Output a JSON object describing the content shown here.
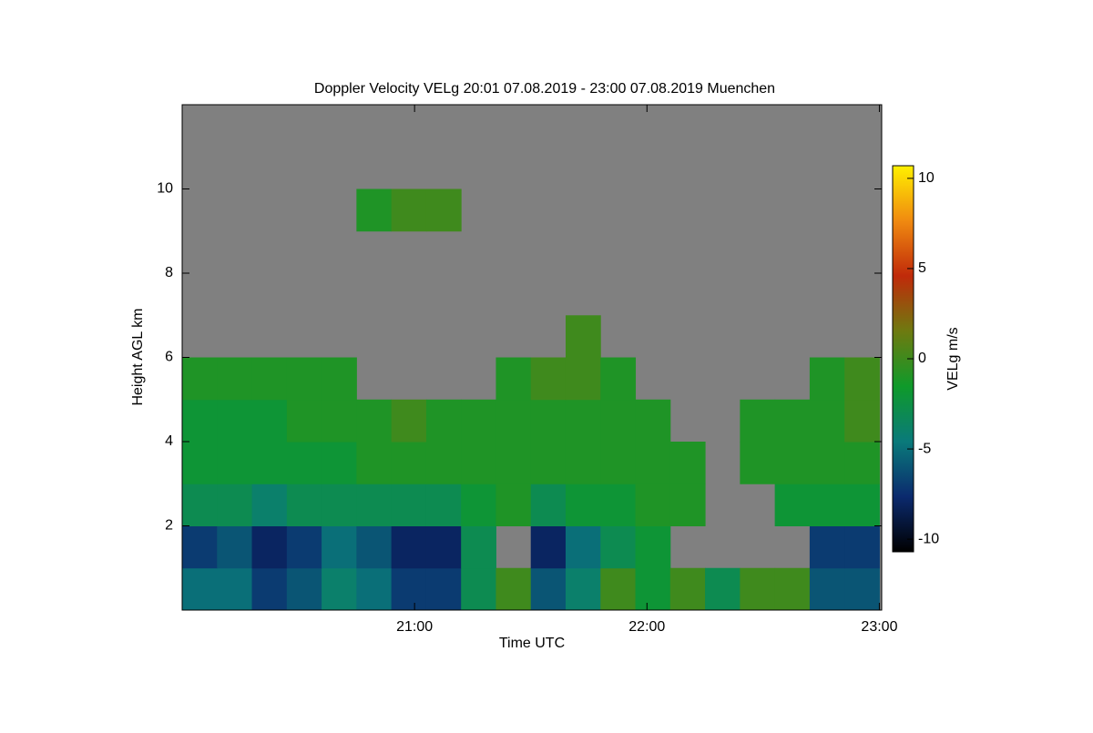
{
  "chart_data": {
    "type": "heatmap",
    "title": "Doppler Velocity VELg   20:01 07.08.2019 - 23:00 07.08.2019 Muenchen",
    "x_label": "Time UTC",
    "y_label": "Height AGL km",
    "colorbar_label": "VELg m/s",
    "x_bins": [
      20.0,
      20.15,
      20.3,
      20.45,
      20.6,
      20.75,
      20.9,
      21.05,
      21.2,
      21.35,
      21.5,
      21.65,
      21.8,
      21.95,
      22.1,
      22.25,
      22.4,
      22.55,
      22.7,
      22.85,
      23.0
    ],
    "y_bins": [
      0,
      1,
      2,
      3,
      4,
      5,
      6,
      7,
      8,
      9,
      10,
      11,
      12
    ],
    "z": [
      [
        -5,
        -5,
        -7,
        -6,
        -4,
        -5,
        -7,
        -7,
        -3,
        0,
        -6,
        -4,
        0,
        -2,
        0,
        -3,
        0,
        0,
        -6,
        -6
      ],
      [
        -7,
        -6,
        -8,
        -7,
        -5,
        -6,
        -8,
        -8,
        -3,
        null,
        -8,
        -5,
        -3,
        -2,
        null,
        null,
        null,
        null,
        -7,
        -7
      ],
      [
        -3,
        -3,
        -4,
        -3,
        -3,
        -3,
        -3,
        -3,
        -2,
        -1,
        -3,
        -2,
        -2,
        -1,
        -1,
        null,
        null,
        -2,
        -2,
        -2
      ],
      [
        -2,
        -2,
        -2,
        -2,
        -2,
        -1,
        -1,
        -1,
        -1,
        -1,
        -1,
        -1,
        -1,
        -1,
        -1,
        null,
        -1,
        -1,
        -1,
        -1
      ],
      [
        -2,
        -2,
        -2,
        -1,
        -1,
        -1,
        0,
        -1,
        -1,
        -1,
        -1,
        -1,
        -1,
        -1,
        null,
        null,
        -1,
        -1,
        -1,
        0
      ],
      [
        -1,
        -1,
        -1,
        -1,
        -1,
        null,
        null,
        null,
        null,
        -1,
        0,
        0,
        -1,
        null,
        null,
        null,
        null,
        null,
        -1,
        0
      ],
      [
        null,
        null,
        null,
        null,
        null,
        null,
        null,
        null,
        null,
        null,
        null,
        0,
        null,
        null,
        null,
        null,
        null,
        null,
        null,
        null
      ],
      [
        null,
        null,
        null,
        null,
        null,
        null,
        null,
        null,
        null,
        null,
        null,
        null,
        null,
        null,
        null,
        null,
        null,
        null,
        null,
        null
      ],
      [
        null,
        null,
        null,
        null,
        null,
        null,
        null,
        null,
        null,
        null,
        null,
        null,
        null,
        null,
        null,
        null,
        null,
        null,
        null,
        null
      ],
      [
        null,
        null,
        null,
        null,
        null,
        -1,
        0,
        0,
        null,
        null,
        null,
        null,
        null,
        null,
        null,
        null,
        null,
        null,
        null,
        null
      ],
      [
        null,
        null,
        null,
        null,
        null,
        null,
        null,
        null,
        null,
        null,
        null,
        null,
        null,
        null,
        null,
        null,
        null,
        null,
        null,
        null
      ],
      [
        null,
        null,
        null,
        null,
        null,
        null,
        null,
        null,
        null,
        null,
        null,
        null,
        null,
        null,
        null,
        null,
        null,
        null,
        null,
        null
      ]
    ],
    "xlim": [
      20.0,
      23.01
    ],
    "xticks": [
      {
        "value": 21,
        "label": "21:00"
      },
      {
        "value": 22,
        "label": "22:00"
      },
      {
        "value": 23,
        "label": "23:00"
      }
    ],
    "ylim": [
      0,
      12
    ],
    "yticks": [
      2,
      4,
      6,
      8,
      10
    ],
    "clim": [
      -10.7,
      10.7
    ],
    "cticks": [
      -10,
      -5,
      0,
      5,
      10
    ],
    "colormap": [
      "#000000",
      "#0b2a6e",
      "#0a7a7a",
      "#0f9a2a",
      "#6e7a10",
      "#c02a0a",
      "#f08a10",
      "#fff000"
    ],
    "missing_color": "#808080"
  }
}
